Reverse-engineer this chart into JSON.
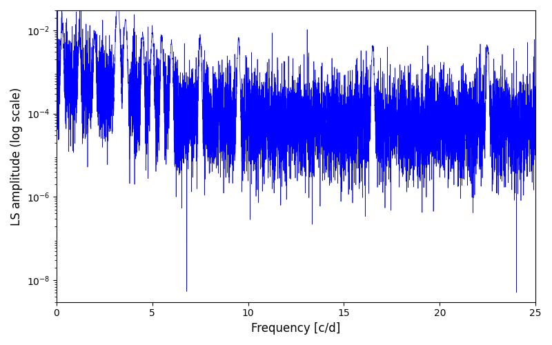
{
  "xlabel": "Frequency [c/d]",
  "ylabel": "LS amplitude (log scale)",
  "xlim": [
    0,
    25
  ],
  "ylim": [
    3e-09,
    0.03
  ],
  "line_color": "blue",
  "line_width": 0.5,
  "background_color": "#ffffff",
  "figsize": [
    8.0,
    5.0
  ],
  "dpi": 100,
  "yscale": "log",
  "seed": 12345,
  "N": 8000,
  "peak_locs": [
    0.3,
    1.2,
    2.0,
    3.2,
    3.6,
    4.5,
    5.0,
    5.5,
    6.0,
    7.5,
    9.5,
    16.5,
    22.5
  ],
  "peak_heights": [
    0.012,
    0.005,
    0.007,
    0.045,
    0.018,
    0.008,
    0.009,
    0.006,
    0.005,
    0.006,
    0.006,
    0.004,
    0.004
  ],
  "peak_widths": [
    0.04,
    0.04,
    0.04,
    0.06,
    0.05,
    0.04,
    0.04,
    0.04,
    0.04,
    0.04,
    0.04,
    0.04,
    0.04
  ],
  "deep_dip_locs": [
    6.8,
    24.0
  ],
  "deep_dip_val": 5e-09,
  "yticks": [
    1e-08,
    1e-06,
    0.0001,
    0.01
  ]
}
